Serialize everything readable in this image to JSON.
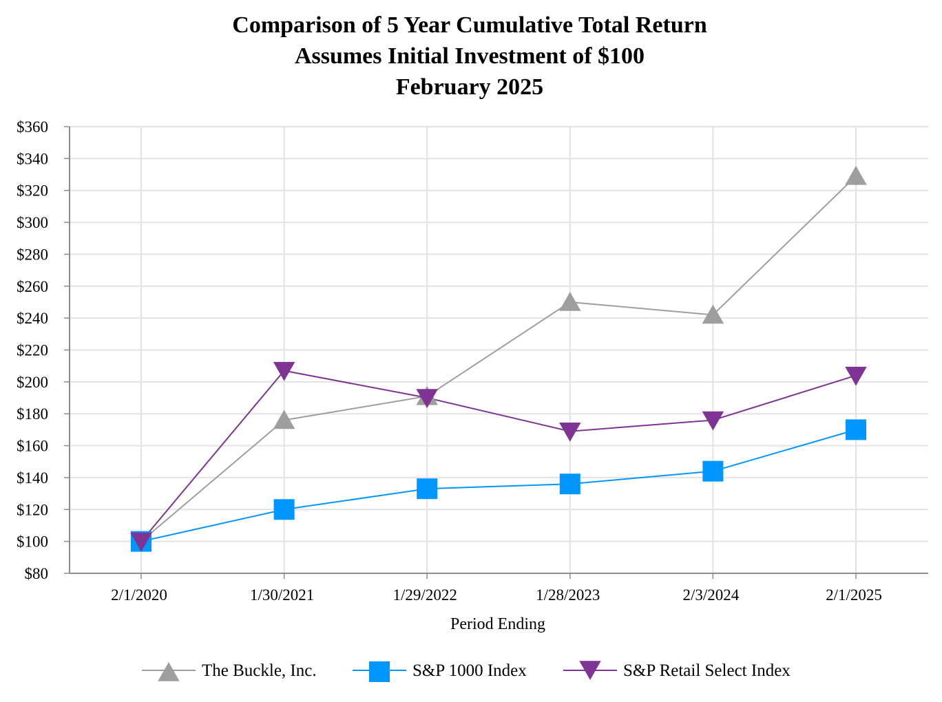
{
  "chart_data": {
    "type": "line",
    "title": "Comparison of 5 Year Cumulative Total Return",
    "subtitle": [
      "Assumes Initial Investment of $100",
      "February 2025"
    ],
    "xlabel": "Period Ending",
    "ylabel": "",
    "categories": [
      "2/1/2020",
      "1/30/2021",
      "1/29/2022",
      "1/28/2023",
      "2/3/2024",
      "2/1/2025"
    ],
    "ylim": [
      80,
      360
    ],
    "ytick_step": 20,
    "ytick_prefix": "$",
    "grid": true,
    "legend_position": "bottom",
    "series": [
      {
        "name": "The Buckle, Inc.",
        "marker": "triangle-up",
        "color": "#9E9E9E",
        "values": [
          100,
          176,
          191,
          250,
          242,
          329
        ]
      },
      {
        "name": "S&P 1000 Index",
        "marker": "square",
        "color": "#0096FF",
        "values": [
          100,
          120,
          133,
          136,
          144,
          170
        ]
      },
      {
        "name": "S&P Retail Select Index",
        "marker": "triangle-down",
        "color": "#7F3392",
        "values": [
          100,
          207,
          190,
          169,
          176,
          204
        ]
      }
    ]
  }
}
